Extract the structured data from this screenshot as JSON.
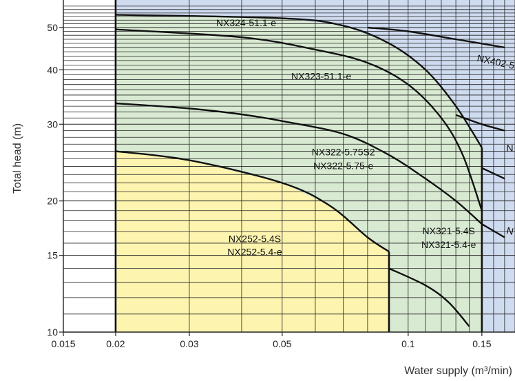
{
  "chart_data": {
    "type": "line",
    "title": "",
    "xlabel": "Water supply (m³/min)",
    "ylabel": "Total head (m)",
    "x_scale": "log",
    "y_scale": "log",
    "xlim": [
      0.015,
      0.18
    ],
    "ylim": [
      10,
      57
    ],
    "grid": true,
    "x_ticks": [
      {
        "value": 0.015,
        "label": "0.015"
      },
      {
        "value": 0.02,
        "label": "0.02"
      },
      {
        "value": 0.03,
        "label": "0.03"
      },
      {
        "value": 0.05,
        "label": "0.05"
      },
      {
        "value": 0.1,
        "label": "0.1"
      },
      {
        "value": 0.15,
        "label": "0.15"
      }
    ],
    "y_ticks": [
      {
        "value": 10,
        "label": "10"
      },
      {
        "value": 15,
        "label": "15"
      },
      {
        "value": 20,
        "label": "20"
      },
      {
        "value": 30,
        "label": "30"
      },
      {
        "value": 40,
        "label": "40"
      },
      {
        "value": 50,
        "label": "50"
      }
    ],
    "colors": {
      "yellow_region": "#fdf4b0",
      "green_region": "#d9ead3",
      "blue_region": "#cfdbef",
      "curve": "#111111",
      "grid": "#222222"
    },
    "regions": [
      {
        "color": "yellow",
        "points": [
          [
            0.02,
            10
          ],
          [
            0.02,
            26
          ],
          [
            0.03,
            24.8
          ],
          [
            0.05,
            22
          ],
          [
            0.065,
            19.5
          ],
          [
            0.08,
            16.5
          ],
          [
            0.09,
            15.3
          ],
          [
            0.09,
            10
          ]
        ]
      },
      {
        "color": "green",
        "points": [
          [
            0.02,
            10
          ],
          [
            0.02,
            53.5
          ],
          [
            0.05,
            52.5
          ],
          [
            0.07,
            50.5
          ],
          [
            0.09,
            46
          ],
          [
            0.11,
            40
          ],
          [
            0.13,
            33
          ],
          [
            0.15,
            26.5
          ],
          [
            0.15,
            10
          ]
        ]
      }
    ],
    "series": [
      {
        "points": [
          [
            0.02,
            53.5
          ],
          [
            0.05,
            52.5
          ],
          [
            0.07,
            50.5
          ],
          [
            0.09,
            46
          ],
          [
            0.11,
            40
          ],
          [
            0.13,
            33
          ],
          [
            0.15,
            26.5
          ]
        ]
      },
      {
        "points": [
          [
            0.02,
            49.5
          ],
          [
            0.04,
            47.5
          ],
          [
            0.06,
            44.5
          ],
          [
            0.08,
            41.5
          ],
          [
            0.1,
            37
          ],
          [
            0.12,
            31
          ],
          [
            0.135,
            25.5
          ],
          [
            0.15,
            19
          ]
        ]
      },
      {
        "points": [
          [
            0.02,
            33.5
          ],
          [
            0.03,
            32.6
          ],
          [
            0.04,
            31.6
          ],
          [
            0.05,
            30.5
          ],
          [
            0.07,
            28.5
          ],
          [
            0.09,
            25.5
          ],
          [
            0.11,
            22.5
          ],
          [
            0.13,
            20
          ],
          [
            0.15,
            17.7
          ]
        ]
      },
      {
        "points": [
          [
            0.02,
            26
          ],
          [
            0.03,
            24.8
          ],
          [
            0.05,
            22
          ],
          [
            0.065,
            19.5
          ],
          [
            0.08,
            16.5
          ],
          [
            0.09,
            15.3
          ]
        ]
      },
      {
        "points": [
          [
            0.09,
            14
          ],
          [
            0.11,
            12.8
          ],
          [
            0.125,
            11.7
          ],
          [
            0.14,
            10.3
          ]
        ]
      },
      {
        "points": [
          [
            0.08,
            50
          ],
          [
            0.1,
            49
          ],
          [
            0.13,
            47
          ],
          [
            0.17,
            45
          ]
        ]
      },
      {
        "points": [
          [
            0.13,
            31.5
          ],
          [
            0.15,
            30
          ],
          [
            0.17,
            29
          ]
        ]
      },
      {
        "points": [
          [
            0.15,
            23.8
          ],
          [
            0.17,
            22.5
          ]
        ]
      },
      {
        "points": [
          [
            0.15,
            17.7
          ],
          [
            0.17,
            16.5
          ]
        ]
      }
    ],
    "annotations": [
      {
        "text": "NX324-51.1-e",
        "x": 0.041,
        "y": 51
      },
      {
        "text": "NX323-51.1-e",
        "x": 0.062,
        "y": 38.5
      },
      {
        "text": "NX322-5.75S2",
        "x": 0.07,
        "y": 25.8
      },
      {
        "text": "NX322-5.75-e",
        "x": 0.07,
        "y": 24.0
      },
      {
        "text": "NX252-5.4S",
        "x": 0.043,
        "y": 16.3
      },
      {
        "text": "NX252-5.4-e",
        "x": 0.043,
        "y": 15.2
      },
      {
        "text": "NX321-5.4S",
        "x": 0.125,
        "y": 17.0
      },
      {
        "text": "NX321-5.4-e",
        "x": 0.125,
        "y": 15.8
      },
      {
        "text": "NX402-5.",
        "x": 0.163,
        "y": 41.5,
        "rotate": 12
      },
      {
        "text": "N",
        "x": 0.175,
        "y": 26.3
      },
      {
        "text": "N",
        "x": 0.175,
        "y": 17.0,
        "rotate": 12
      }
    ]
  }
}
